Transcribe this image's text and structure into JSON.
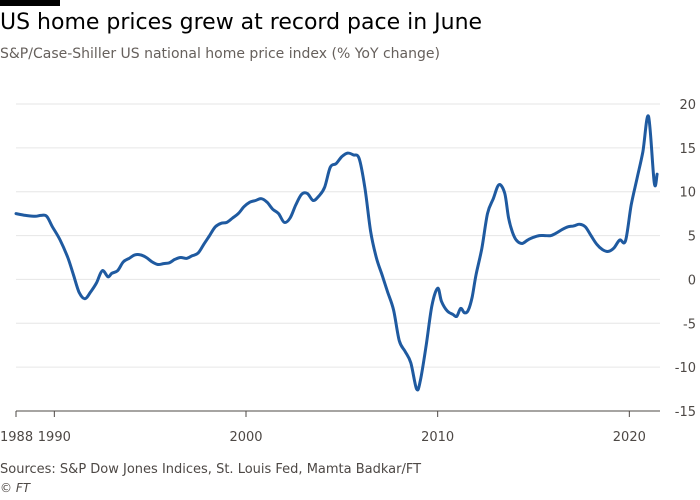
{
  "title": "US home prices grew at record pace in June",
  "subtitle": "S&P/Case-Shiller US national home price index (% YoY change)",
  "footer": {
    "source": "Sources: S&P Dow Jones Indices, St. Louis Fed, Mamta Badkar/FT",
    "copyright": "© FT"
  },
  "colors": {
    "line": "#1f5aa0",
    "grid": "#e6e6e6",
    "axis": "#4d4845"
  },
  "chart_data": {
    "type": "line",
    "title": "US home prices grew at record pace in June",
    "subtitle": "S&P/Case-Shiller US national home price index (% YoY change)",
    "xlabel": "",
    "ylabel": "",
    "xlim": [
      1988,
      2021.6
    ],
    "ylim": [
      -15,
      20
    ],
    "x_ticks": [
      1988,
      1990,
      2000,
      2010,
      2020
    ],
    "y_ticks": [
      -15,
      -10,
      -5,
      0,
      5,
      10,
      15,
      20
    ],
    "grid": "horizontal",
    "y_axis_side": "right",
    "series": [
      {
        "name": "",
        "x": [
          1988.0,
          1988.5,
          1989.0,
          1989.3,
          1989.6,
          1989.9,
          1990.3,
          1990.7,
          1991.0,
          1991.3,
          1991.6,
          1991.9,
          1992.2,
          1992.5,
          1992.8,
          1993.0,
          1993.3,
          1993.6,
          1993.9,
          1994.2,
          1994.5,
          1994.8,
          1995.1,
          1995.4,
          1995.7,
          1996.0,
          1996.3,
          1996.6,
          1996.9,
          1997.2,
          1997.5,
          1997.8,
          1998.1,
          1998.4,
          1998.7,
          1999.0,
          1999.3,
          1999.6,
          1999.9,
          2000.2,
          2000.5,
          2000.8,
          2001.1,
          2001.4,
          2001.7,
          2002.0,
          2002.3,
          2002.6,
          2002.9,
          2003.2,
          2003.5,
          2003.8,
          2004.1,
          2004.4,
          2004.7,
          2005.0,
          2005.3,
          2005.6,
          2005.9,
          2006.2,
          2006.5,
          2006.8,
          2007.1,
          2007.4,
          2007.7,
          2008.0,
          2008.3,
          2008.6,
          2008.9,
          2009.1,
          2009.4,
          2009.7,
          2010.0,
          2010.2,
          2010.5,
          2010.8,
          2011.0,
          2011.2,
          2011.4,
          2011.6,
          2011.8,
          2012.0,
          2012.3,
          2012.6,
          2012.9,
          2013.2,
          2013.5,
          2013.7,
          2013.9,
          2014.1,
          2014.4,
          2014.7,
          2015.0,
          2015.3,
          2015.6,
          2015.9,
          2016.2,
          2016.5,
          2016.8,
          2017.1,
          2017.4,
          2017.7,
          2018.0,
          2018.3,
          2018.6,
          2018.9,
          2019.2,
          2019.5,
          2019.8,
          2020.1,
          2020.4,
          2020.7,
          2021.0,
          2021.3,
          2021.45
        ],
        "values": [
          7.5,
          7.3,
          7.2,
          7.3,
          7.2,
          6.0,
          4.5,
          2.5,
          0.5,
          -1.5,
          -2.2,
          -1.4,
          -0.4,
          1.0,
          0.3,
          0.7,
          1.0,
          2.0,
          2.4,
          2.8,
          2.8,
          2.5,
          2.0,
          1.7,
          1.8,
          1.9,
          2.3,
          2.5,
          2.4,
          2.7,
          3.0,
          4.0,
          5.0,
          6.0,
          6.4,
          6.5,
          7.0,
          7.5,
          8.3,
          8.8,
          9.0,
          9.2,
          8.8,
          8.0,
          7.5,
          6.5,
          7.0,
          8.5,
          9.7,
          9.8,
          9.0,
          9.5,
          10.5,
          12.8,
          13.2,
          14.0,
          14.4,
          14.2,
          13.8,
          10.5,
          5.5,
          2.5,
          0.5,
          -1.5,
          -3.5,
          -7.0,
          -8.2,
          -9.5,
          -12.5,
          -11.5,
          -7.5,
          -3.0,
          -1.0,
          -2.5,
          -3.6,
          -4.0,
          -4.2,
          -3.3,
          -3.8,
          -3.5,
          -2.0,
          0.5,
          3.5,
          7.5,
          9.2,
          10.8,
          9.8,
          7.0,
          5.4,
          4.5,
          4.1,
          4.5,
          4.8,
          5.0,
          5.0,
          5.0,
          5.3,
          5.7,
          6.0,
          6.1,
          6.3,
          6.0,
          5.0,
          4.0,
          3.4,
          3.2,
          3.6,
          4.5,
          4.4,
          8.5,
          11.5,
          14.5,
          18.6,
          11.0,
          12.0
        ]
      }
    ]
  }
}
